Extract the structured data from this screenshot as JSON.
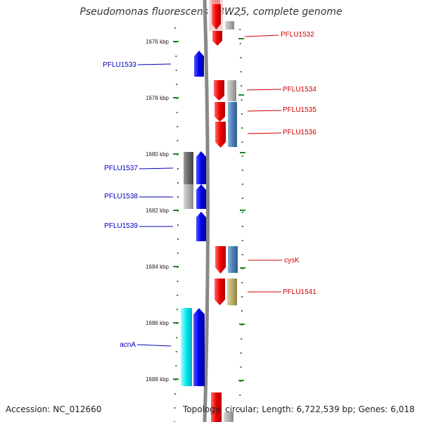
{
  "title": "Pseudomonas fluorescens SBW25, complete genome",
  "footer": {
    "accession": "Accession: NC_012660",
    "topology": "Topology: circular; Length: 6,722,539 bp; Genes: 6,018"
  },
  "ticks": [
    "1676 kbp",
    "1678 kbp",
    "1680 kbp",
    "1682 kbp",
    "1684 kbp",
    "1686 kbp",
    "1688 kbp"
  ],
  "genes_left": [
    {
      "name": "PFLU1533",
      "color": "#0000bb"
    },
    {
      "name": "PFLU1537",
      "color": "#0000bb"
    },
    {
      "name": "PFLU1538",
      "color": "#0000bb"
    },
    {
      "name": "PFLU1539",
      "color": "#0000bb"
    },
    {
      "name": "acnA",
      "color": "#0000bb"
    }
  ],
  "genes_right": [
    {
      "name": "PFLU1532",
      "color": "#cc0000"
    },
    {
      "name": "PFLU1534",
      "color": "#cc0000"
    },
    {
      "name": "PFLU1535",
      "color": "#cc0000"
    },
    {
      "name": "PFLU1536",
      "color": "#cc0000"
    },
    {
      "name": "cysK",
      "color": "#cc0000"
    },
    {
      "name": "PFLU1541",
      "color": "#cc0000"
    }
  ],
  "colors": {
    "forward_gene": "#ee0000",
    "reverse_gene": "#0000ee",
    "backbone": "#888888",
    "tick": "#228822",
    "cog_blue": "#4a7fb5",
    "cog_gray": "#a0a0a0",
    "cog_olive": "#b8ad6a",
    "cog_cyan": "#00e0ee"
  }
}
